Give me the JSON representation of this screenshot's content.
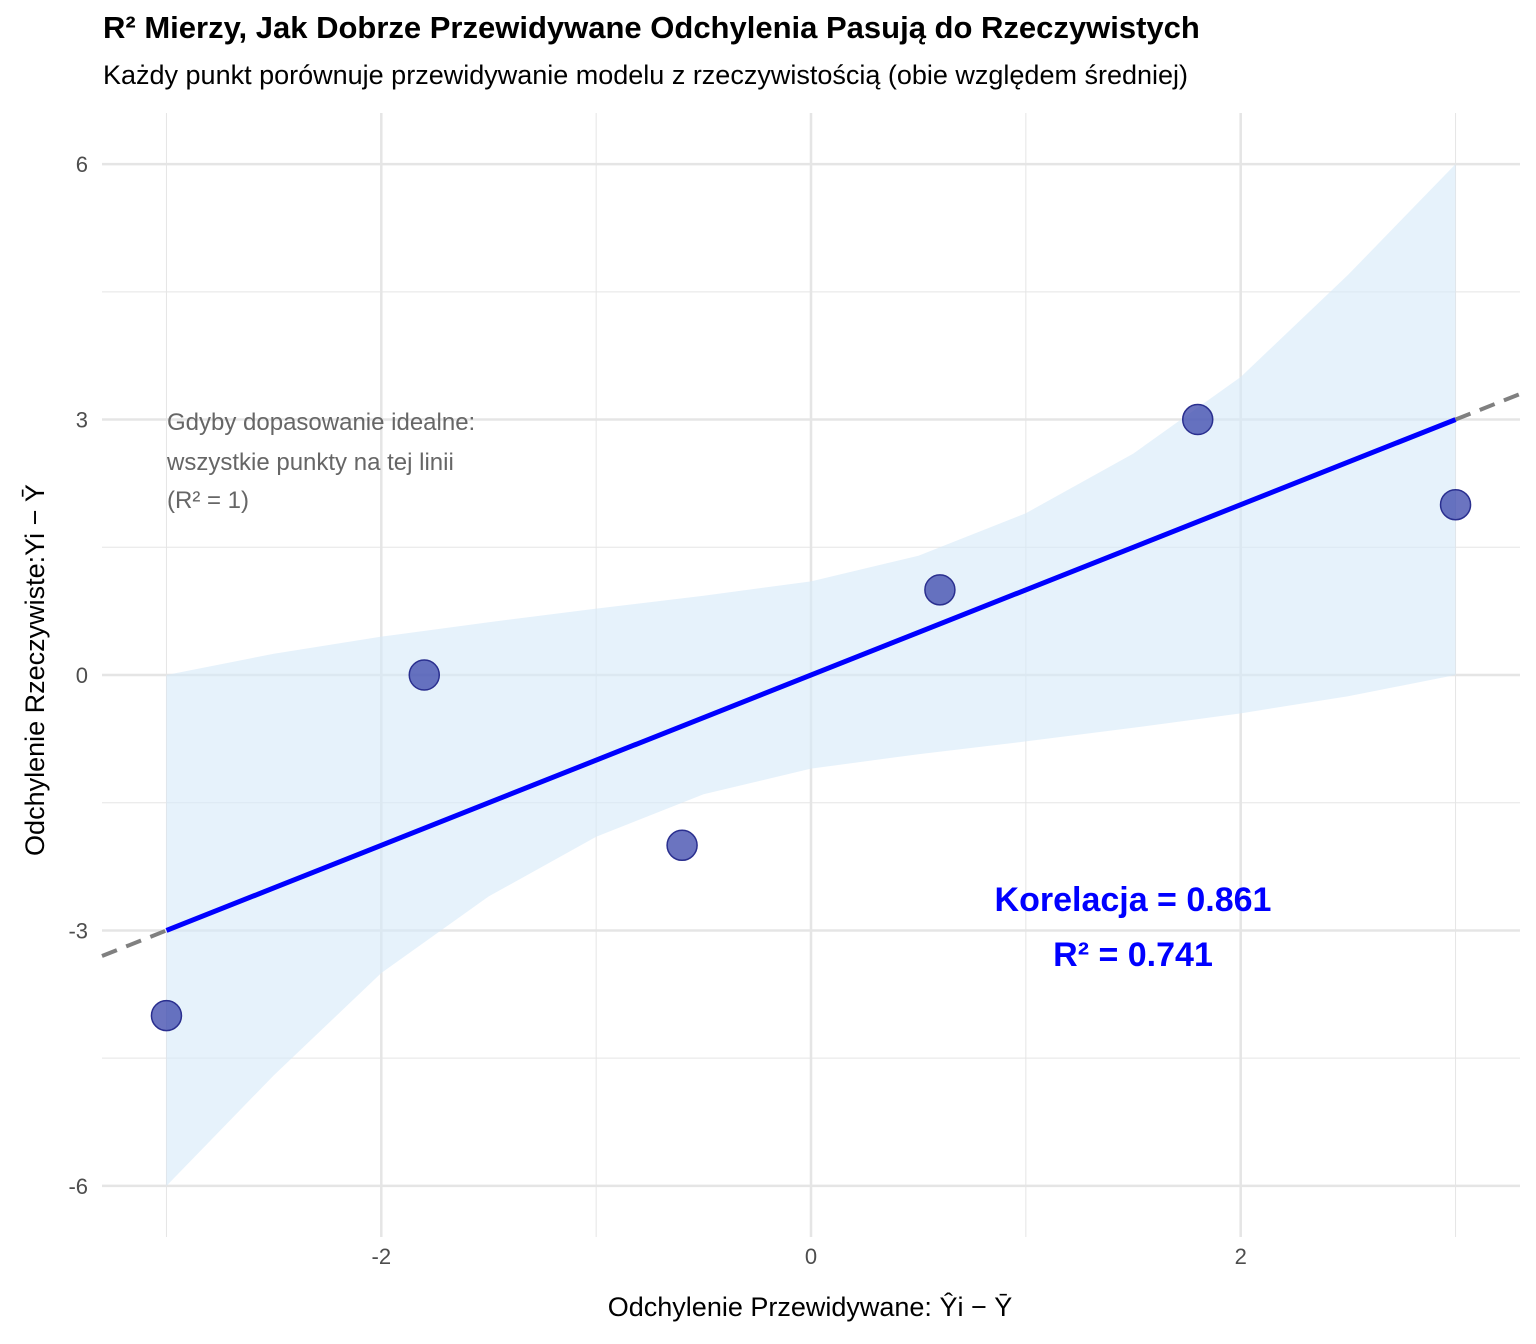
{
  "chart_data": {
    "type": "scatter",
    "title": "R² Mierzy, Jak Dobrze Przewidywane Odchylenia Pasują do Rzeczywistych",
    "subtitle": "Każdy punkt porównuje przewidywanie modelu z rzeczywistością (obie względem średniej)",
    "xlabel": {
      "prefix": "Odchylenie Przewidywane: ",
      "math": "Ŷi − Ȳ"
    },
    "ylabel": {
      "prefix": "Odchylenie Rzeczywiste:",
      "math": "Yi − Ȳ"
    },
    "xlim": [
      -3.3,
      3.3
    ],
    "ylim": [
      -6.6,
      6.6
    ],
    "x_ticks": [
      {
        "value": -2,
        "label": "-2"
      },
      {
        "value": 0,
        "label": "0"
      },
      {
        "value": 2,
        "label": "2"
      }
    ],
    "y_ticks": [
      {
        "value": 6,
        "label": "6"
      },
      {
        "value": 3,
        "label": "3"
      },
      {
        "value": 0,
        "label": "0"
      },
      {
        "value": -3,
        "label": "-3"
      },
      {
        "value": -6,
        "label": "-6"
      }
    ],
    "grid": true,
    "points": [
      {
        "x": -3.0,
        "y": -4.0
      },
      {
        "x": -1.8,
        "y": 0.0
      },
      {
        "x": -0.6,
        "y": -2.0
      },
      {
        "x": 0.6,
        "y": 1.0
      },
      {
        "x": 1.8,
        "y": 3.0
      },
      {
        "x": 3.0,
        "y": 2.0
      }
    ],
    "fit_line": {
      "slope": 1.0,
      "intercept": 0.0,
      "x_range": [
        -3.0,
        3.0
      ],
      "color": "#0000ff"
    },
    "confidence_band": {
      "x": [
        -3.0,
        -2.5,
        -2.0,
        -1.5,
        -1.0,
        -0.5,
        0.0,
        0.5,
        1.0,
        1.5,
        2.0,
        2.5,
        3.0
      ],
      "upper": [
        0.0,
        0.25,
        0.45,
        0.62,
        0.78,
        0.93,
        1.1,
        1.4,
        1.9,
        2.6,
        3.5,
        4.7,
        6.0
      ],
      "lower": [
        -6.0,
        -4.7,
        -3.5,
        -2.6,
        -1.9,
        -1.4,
        -1.1,
        -0.93,
        -0.78,
        -0.62,
        -0.45,
        -0.25,
        0.0
      ],
      "color": "#d6eaf8"
    },
    "reference_line": {
      "slope": 1.0,
      "intercept": 0.0,
      "color": "#808080",
      "style": "dashed"
    },
    "annotations": {
      "ideal_note": [
        "Gdyby dopasowanie idealne:",
        "wszystkie punkty na tej linii",
        "(R² = 1)"
      ],
      "correlation": "Korelacja = 0.861",
      "r_squared": "R² = 0.741"
    },
    "colors": {
      "point_fill": "#3a45ab",
      "point_stroke": "#2a2f8f",
      "grid": "#e5e5e5"
    }
  }
}
